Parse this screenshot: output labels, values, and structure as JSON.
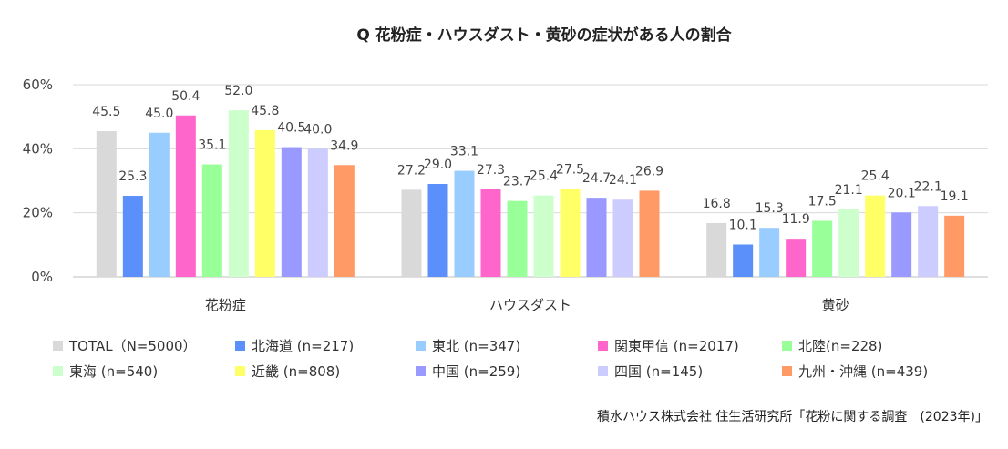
{
  "chart_data": {
    "type": "bar",
    "title": "Q 花粉症・ハウスダスト・黄砂の症状がある人の割合",
    "categories": [
      "花粉症",
      "ハウスダスト",
      "黄砂"
    ],
    "ylim": [
      0,
      60
    ],
    "yticks": [
      "0%",
      "20%",
      "40%",
      "60%"
    ],
    "ytick_values": [
      0,
      20,
      40,
      60
    ],
    "grid": true,
    "legend_position": "bottom",
    "series": [
      {
        "name": "TOTAL（N=5000）",
        "color": "#d9d9d9",
        "values": [
          45.5,
          27.2,
          16.8
        ],
        "labels": [
          "45.5",
          "27.2",
          "16.8"
        ]
      },
      {
        "name": "北海道 (n=217)",
        "color": "#5b8ff9",
        "values": [
          25.3,
          29.0,
          10.1
        ],
        "labels": [
          "25.3",
          "29.0",
          "10.1"
        ]
      },
      {
        "name": "東北 (n=347)",
        "color": "#99ccff",
        "values": [
          45.0,
          33.1,
          15.3
        ],
        "labels": [
          "45.0",
          "33.1",
          "15.3"
        ]
      },
      {
        "name": "関東甲信 (n=2017)",
        "color": "#ff66cc",
        "values": [
          50.4,
          27.3,
          11.9
        ],
        "labels": [
          "50.4",
          "27.3",
          "11.9"
        ]
      },
      {
        "name": "北陸(n=228)",
        "color": "#99ff99",
        "values": [
          35.1,
          23.7,
          17.5
        ],
        "labels": [
          "35.1",
          "23.7",
          "17.5"
        ]
      },
      {
        "name": "東海 (n=540)",
        "color": "#ccffcc",
        "values": [
          52.0,
          25.4,
          21.1
        ],
        "labels": [
          "52.0",
          "25.4",
          "21.1"
        ]
      },
      {
        "name": "近畿 (n=808)",
        "color": "#ffff66",
        "values": [
          45.8,
          27.5,
          25.4
        ],
        "labels": [
          "45.8",
          "27.5",
          "25.4"
        ]
      },
      {
        "name": "中国 (n=259)",
        "color": "#9999ff",
        "values": [
          40.5,
          24.7,
          20.1
        ],
        "labels": [
          "40.5",
          "24.7",
          "20.1"
        ]
      },
      {
        "name": "四国 (n=145)",
        "color": "#ccccff",
        "values": [
          40.0,
          24.1,
          22.1
        ],
        "labels": [
          "40.0",
          "24.1",
          "22.1"
        ]
      },
      {
        "name": "九州・沖縄 (n=439)",
        "color": "#ff9966",
        "values": [
          34.9,
          26.9,
          19.1
        ],
        "labels": [
          "34.9",
          "26.9",
          "19.1"
        ]
      }
    ]
  },
  "source": "積水ハウス株式会社 住生活研究所「花粉に関する調査　(2023年)」"
}
